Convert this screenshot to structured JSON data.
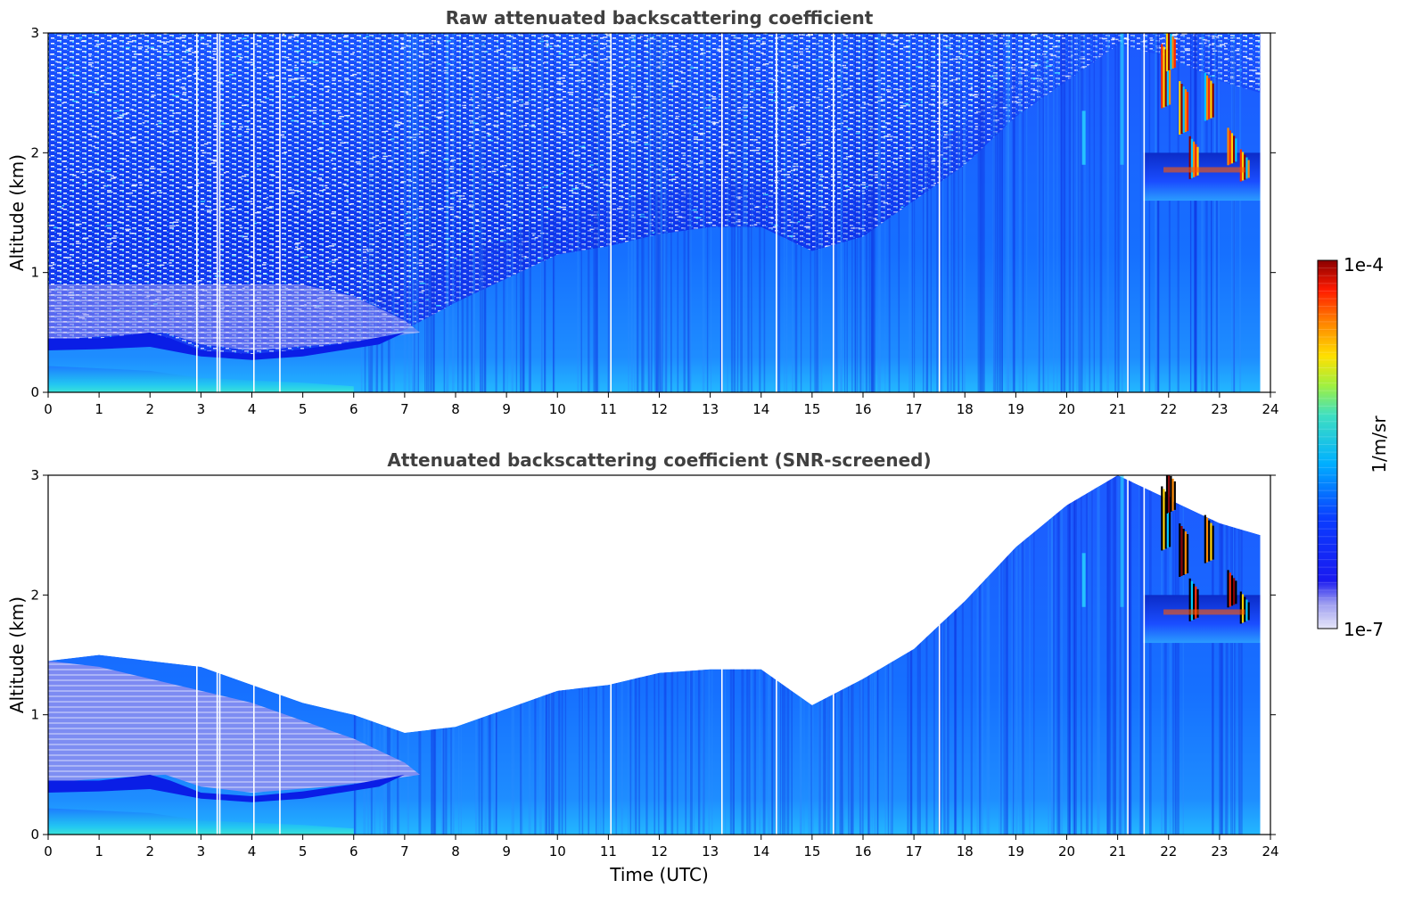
{
  "chart_data": [
    {
      "type": "heatmap",
      "title": "Raw attenuated backscattering coefficient",
      "xlabel": "",
      "ylabel": "Altitude (km)",
      "xlim": [
        0,
        24
      ],
      "ylim": [
        0,
        3
      ],
      "x_ticks": [
        "0",
        "1",
        "2",
        "3",
        "4",
        "5",
        "6",
        "7",
        "8",
        "9",
        "10",
        "11",
        "12",
        "13",
        "14",
        "15",
        "16",
        "17",
        "18",
        "19",
        "20",
        "21",
        "22",
        "23",
        "24"
      ],
      "y_ticks": [
        "0",
        "1",
        "2",
        "3"
      ],
      "data_gaps_utc": [
        2.92,
        3.32,
        3.37,
        4.04,
        4.55,
        11.05,
        13.23,
        14.3,
        15.42,
        17.5,
        21.2,
        21.52
      ],
      "data_end_utc": 23.8,
      "boundary_layer_top_km": [
        [
          0,
          0.4
        ],
        [
          1,
          0.42
        ],
        [
          2,
          0.48
        ],
        [
          2.5,
          0.42
        ],
        [
          3,
          0.33
        ],
        [
          4,
          0.3
        ],
        [
          5,
          0.33
        ],
        [
          6,
          0.4
        ],
        [
          7,
          0.52
        ],
        [
          8,
          0.75
        ],
        [
          9,
          0.95
        ],
        [
          10,
          1.15
        ],
        [
          11,
          1.22
        ],
        [
          12,
          1.32
        ],
        [
          13,
          1.38
        ],
        [
          14,
          1.38
        ],
        [
          15,
          1.18
        ],
        [
          16,
          1.3
        ],
        [
          17,
          1.6
        ],
        [
          18,
          1.9
        ],
        [
          19,
          2.3
        ],
        [
          20,
          2.6
        ],
        [
          21,
          2.9
        ],
        [
          22,
          2.8
        ],
        [
          23,
          2.6
        ],
        [
          23.8,
          2.5
        ]
      ],
      "cloud_layer": {
        "x_range": [
          21.3,
          23.5
        ],
        "base_km": 1.8,
        "top_km": 3.0
      },
      "colorbar": {
        "min_label": "1e-7",
        "max_label": "1e-4",
        "label": "1/m/sr",
        "scale": "log",
        "colormap": "jet"
      }
    },
    {
      "type": "heatmap",
      "title": "Attenuated backscattering coefficient (SNR-screened)",
      "xlabel": "Time (UTC)",
      "ylabel": "Altitude (km)",
      "xlim": [
        0,
        24
      ],
      "ylim": [
        0,
        3
      ],
      "x_ticks": [
        "0",
        "1",
        "2",
        "3",
        "4",
        "5",
        "6",
        "7",
        "8",
        "9",
        "10",
        "11",
        "12",
        "13",
        "14",
        "15",
        "16",
        "17",
        "18",
        "19",
        "20",
        "21",
        "22",
        "23",
        "24"
      ],
      "y_ticks": [
        "0",
        "1",
        "2",
        "3"
      ],
      "screened_top_km": [
        [
          0,
          1.45
        ],
        [
          1,
          1.5
        ],
        [
          2,
          1.45
        ],
        [
          3,
          1.4
        ],
        [
          4,
          1.25
        ],
        [
          5,
          1.1
        ],
        [
          6,
          1.0
        ],
        [
          7,
          0.85
        ],
        [
          8,
          0.9
        ],
        [
          9,
          1.05
        ],
        [
          10,
          1.2
        ],
        [
          11,
          1.25
        ],
        [
          12,
          1.35
        ],
        [
          13,
          1.38
        ],
        [
          14,
          1.38
        ],
        [
          15,
          1.08
        ],
        [
          16,
          1.3
        ],
        [
          17,
          1.55
        ],
        [
          18,
          1.95
        ],
        [
          19,
          2.4
        ],
        [
          20,
          2.75
        ],
        [
          21,
          3.0
        ],
        [
          22,
          2.8
        ],
        [
          23,
          2.6
        ],
        [
          23.8,
          2.5
        ]
      ],
      "colorbar": {
        "min_label": "1e-7",
        "max_label": "1e-4",
        "label": "1/m/sr",
        "scale": "log",
        "colormap": "jet"
      }
    }
  ]
}
